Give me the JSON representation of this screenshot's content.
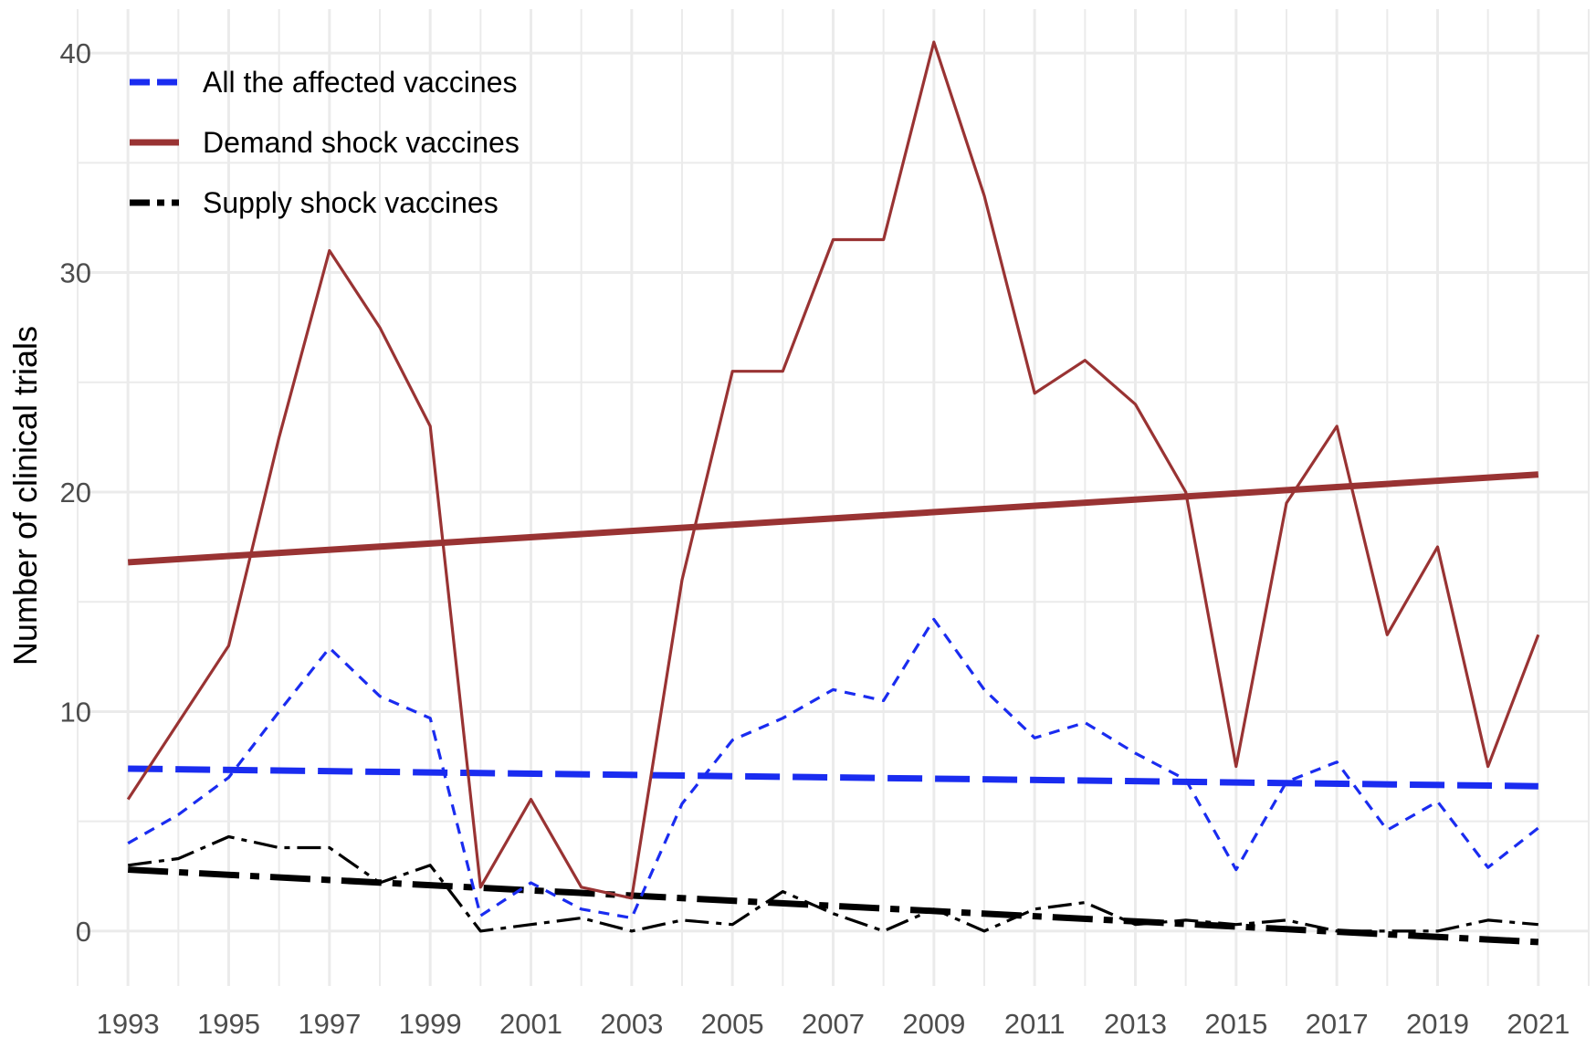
{
  "chart_data": {
    "type": "line",
    "title": "",
    "xlabel": "",
    "ylabel": "Number of clinical trials",
    "x": [
      1993,
      1994,
      1995,
      1996,
      1997,
      1998,
      1999,
      2000,
      2001,
      2002,
      2003,
      2004,
      2005,
      2006,
      2007,
      2008,
      2009,
      2010,
      2011,
      2012,
      2013,
      2014,
      2015,
      2016,
      2017,
      2018,
      2019,
      2020,
      2021
    ],
    "x_ticks": [
      "1993",
      "1995",
      "1997",
      "1999",
      "2001",
      "2003",
      "2005",
      "2007",
      "2009",
      "2011",
      "2013",
      "2015",
      "2017",
      "2019",
      "2021"
    ],
    "y_ticks": [
      "0",
      "10",
      "20",
      "30",
      "40"
    ],
    "xlim": [
      1992,
      2022
    ],
    "ylim": [
      -2.5,
      42
    ],
    "grid": true,
    "legend_position": "top-left",
    "series": [
      {
        "name": "All the affected vaccines",
        "color": "#1a2cf0",
        "style": "dashed",
        "values": [
          4.0,
          5.3,
          7.0,
          10.0,
          12.9,
          10.7,
          9.7,
          0.7,
          2.2,
          1.0,
          0.6,
          5.8,
          8.7,
          9.7,
          11.0,
          10.5,
          14.2,
          11.0,
          8.8,
          9.5,
          8.1,
          6.9,
          2.8,
          6.8,
          7.7,
          4.6,
          5.9,
          2.9,
          4.7
        ],
        "trend": [
          7.4,
          6.6
        ]
      },
      {
        "name": "Demand shock vaccines",
        "color": "#993333",
        "style": "solid",
        "values": [
          6.0,
          9.5,
          13.0,
          22.5,
          31.0,
          27.5,
          23.0,
          2.0,
          6.0,
          2.0,
          1.5,
          16.0,
          25.5,
          25.5,
          31.5,
          31.5,
          40.5,
          33.5,
          24.5,
          26.0,
          24.0,
          20.0,
          7.5,
          19.5,
          23.0,
          13.5,
          17.5,
          7.5,
          13.5
        ],
        "trend": [
          16.8,
          20.8
        ]
      },
      {
        "name": "Supply shock vaccines",
        "color": "#000000",
        "style": "dotdash",
        "values": [
          3.0,
          3.3,
          4.3,
          3.8,
          3.8,
          2.2,
          3.0,
          0.0,
          0.3,
          0.6,
          0.0,
          0.5,
          0.3,
          1.8,
          0.8,
          0.0,
          1.0,
          0.0,
          1.0,
          1.3,
          0.3,
          0.5,
          0.3,
          0.5,
          0.0,
          0.0,
          0.0,
          0.5,
          0.3
        ],
        "trend": [
          2.8,
          -0.5
        ]
      }
    ]
  }
}
